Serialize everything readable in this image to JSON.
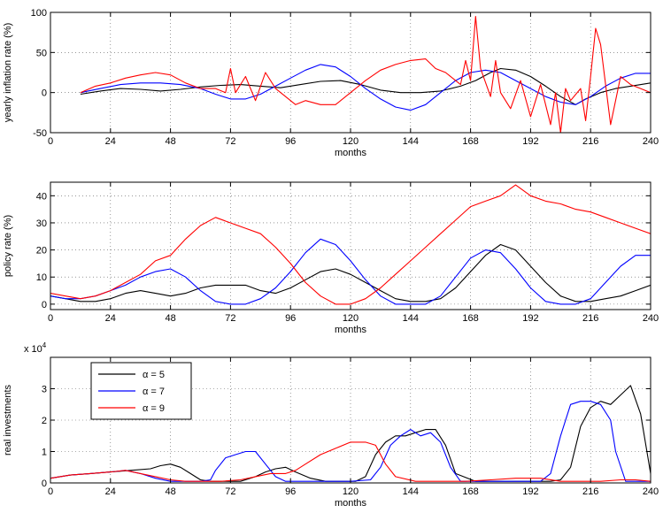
{
  "chart_data": [
    {
      "type": "line",
      "title": "",
      "xlabel": "months",
      "ylabel": "yearly inflation rate (%)",
      "xlim": [
        0,
        240
      ],
      "ylim": [
        -50,
        100
      ],
      "xticks": [
        0,
        24,
        48,
        72,
        96,
        120,
        144,
        168,
        192,
        216,
        240
      ],
      "yticks": [
        -50,
        0,
        50,
        100
      ],
      "grid": true,
      "series": [
        {
          "color": "#000000",
          "x": [
            12,
            20,
            28,
            36,
            44,
            52,
            60,
            68,
            76,
            84,
            92,
            100,
            108,
            116,
            124,
            132,
            140,
            148,
            156,
            164,
            170,
            176,
            180,
            186,
            192,
            198,
            204,
            210,
            214,
            220,
            226,
            232,
            240
          ],
          "y": [
            -2,
            2,
            5,
            4,
            2,
            4,
            7,
            9,
            10,
            8,
            6,
            10,
            14,
            15,
            10,
            3,
            0,
            0,
            2,
            8,
            15,
            25,
            30,
            28,
            20,
            8,
            -5,
            -15,
            -8,
            0,
            5,
            8,
            12
          ]
        },
        {
          "color": "#0000ff",
          "x": [
            12,
            20,
            28,
            36,
            44,
            52,
            60,
            66,
            72,
            78,
            84,
            90,
            96,
            102,
            108,
            114,
            120,
            126,
            132,
            138,
            144,
            150,
            156,
            162,
            168,
            174,
            180,
            186,
            192,
            198,
            204,
            210,
            216,
            222,
            228,
            234,
            240
          ],
          "y": [
            0,
            5,
            10,
            12,
            12,
            10,
            5,
            -2,
            -8,
            -8,
            -2,
            8,
            18,
            28,
            35,
            32,
            20,
            5,
            -8,
            -18,
            -22,
            -15,
            0,
            15,
            25,
            28,
            25,
            15,
            5,
            -5,
            -12,
            -15,
            -5,
            8,
            18,
            24,
            24
          ]
        },
        {
          "color": "#ff0000",
          "x": [
            12,
            18,
            24,
            30,
            36,
            42,
            48,
            54,
            60,
            66,
            70,
            72,
            74,
            78,
            82,
            86,
            90,
            94,
            98,
            102,
            108,
            114,
            120,
            126,
            132,
            138,
            144,
            150,
            154,
            158,
            162,
            164,
            166,
            168,
            170,
            172,
            176,
            178,
            180,
            184,
            188,
            192,
            196,
            200,
            202,
            204,
            206,
            208,
            212,
            214,
            216,
            218,
            220,
            224,
            228,
            232,
            236,
            240
          ],
          "y": [
            0,
            8,
            12,
            18,
            22,
            25,
            22,
            12,
            5,
            5,
            0,
            30,
            0,
            20,
            -10,
            25,
            5,
            -5,
            -15,
            -10,
            -15,
            -15,
            0,
            15,
            28,
            35,
            40,
            42,
            30,
            25,
            15,
            10,
            40,
            15,
            95,
            30,
            -5,
            40,
            0,
            -20,
            15,
            -30,
            10,
            -40,
            0,
            -50,
            5,
            -10,
            5,
            -35,
            20,
            80,
            60,
            -40,
            20,
            10,
            5,
            0
          ]
        }
      ]
    },
    {
      "type": "line",
      "title": "",
      "xlabel": "months",
      "ylabel": "policy rate (%)",
      "xlim": [
        0,
        240
      ],
      "ylim": [
        -2,
        45
      ],
      "xticks": [
        0,
        24,
        48,
        72,
        96,
        120,
        144,
        168,
        192,
        216,
        240
      ],
      "yticks": [
        0,
        10,
        20,
        30,
        40
      ],
      "grid": true,
      "series": [
        {
          "color": "#000000",
          "x": [
            0,
            6,
            12,
            18,
            24,
            30,
            36,
            42,
            48,
            54,
            60,
            66,
            72,
            78,
            84,
            90,
            96,
            102,
            108,
            114,
            120,
            126,
            132,
            138,
            144,
            150,
            156,
            162,
            168,
            174,
            180,
            186,
            192,
            198,
            204,
            210,
            216,
            222,
            228,
            234,
            240
          ],
          "y": [
            3,
            2,
            1,
            1,
            2,
            4,
            5,
            4,
            3,
            4,
            6,
            7,
            7,
            7,
            5,
            4,
            6,
            9,
            12,
            13,
            11,
            8,
            5,
            2,
            1,
            1,
            2,
            6,
            12,
            18,
            22,
            20,
            14,
            8,
            3,
            1,
            1,
            2,
            3,
            5,
            7
          ]
        },
        {
          "color": "#0000ff",
          "x": [
            0,
            6,
            12,
            18,
            24,
            30,
            36,
            42,
            48,
            54,
            60,
            66,
            72,
            78,
            84,
            90,
            96,
            102,
            108,
            114,
            120,
            126,
            132,
            138,
            144,
            150,
            156,
            162,
            168,
            174,
            180,
            186,
            192,
            198,
            204,
            210,
            216,
            222,
            228,
            234,
            240
          ],
          "y": [
            3,
            2,
            2,
            3,
            5,
            7,
            10,
            12,
            13,
            10,
            5,
            1,
            0,
            0,
            2,
            6,
            12,
            19,
            24,
            22,
            16,
            9,
            3,
            0,
            0,
            0,
            3,
            10,
            17,
            20,
            19,
            13,
            6,
            1,
            0,
            0,
            2,
            8,
            14,
            18,
            18
          ]
        },
        {
          "color": "#ff0000",
          "x": [
            0,
            6,
            12,
            18,
            24,
            30,
            36,
            42,
            48,
            54,
            60,
            66,
            72,
            78,
            84,
            90,
            96,
            102,
            108,
            114,
            120,
            126,
            132,
            138,
            144,
            150,
            156,
            162,
            168,
            174,
            180,
            186,
            192,
            198,
            204,
            210,
            216,
            222,
            228,
            234,
            240
          ],
          "y": [
            4,
            3,
            2,
            3,
            5,
            8,
            11,
            16,
            18,
            24,
            29,
            32,
            30,
            28,
            26,
            21,
            15,
            8,
            3,
            0,
            0,
            2,
            6,
            11,
            16,
            21,
            26,
            31,
            36,
            38,
            40,
            44,
            40,
            38,
            37,
            35,
            34,
            32,
            30,
            28,
            26
          ]
        }
      ]
    },
    {
      "type": "line",
      "title": "",
      "xlabel": "months",
      "ylabel": "real investments",
      "ylabel_multiplier": "x 10",
      "ylabel_exponent": "4",
      "xlim": [
        0,
        240
      ],
      "ylim": [
        0,
        4
      ],
      "xticks": [
        0,
        24,
        48,
        72,
        96,
        120,
        144,
        168,
        192,
        216,
        240
      ],
      "yticks": [
        0,
        1,
        2,
        3
      ],
      "grid": true,
      "legend": {
        "placement": "top-left",
        "entries": [
          {
            "label": "α = 5",
            "color": "#000000"
          },
          {
            "label": "α = 7",
            "color": "#0000ff"
          },
          {
            "label": "α = 9",
            "color": "#ff0000"
          }
        ]
      },
      "series": [
        {
          "color": "#000000",
          "x": [
            0,
            8,
            16,
            24,
            32,
            40,
            44,
            48,
            52,
            56,
            60,
            64,
            70,
            76,
            82,
            86,
            90,
            94,
            98,
            104,
            110,
            116,
            122,
            126,
            130,
            134,
            138,
            142,
            146,
            150,
            154,
            158,
            162,
            170,
            180,
            190,
            196,
            200,
            204,
            208,
            212,
            216,
            220,
            224,
            228,
            232,
            236,
            240
          ],
          "y": [
            0.15,
            0.25,
            0.3,
            0.35,
            0.4,
            0.45,
            0.55,
            0.6,
            0.5,
            0.3,
            0.1,
            0.05,
            0.05,
            0.05,
            0.2,
            0.35,
            0.45,
            0.5,
            0.35,
            0.15,
            0.05,
            0.05,
            0.05,
            0.2,
            0.9,
            1.3,
            1.5,
            1.5,
            1.6,
            1.7,
            1.7,
            1.2,
            0.3,
            0.05,
            0.05,
            0.05,
            0.05,
            0.05,
            0.1,
            0.5,
            1.8,
            2.4,
            2.6,
            2.5,
            2.8,
            3.1,
            2.2,
            0.3
          ]
        },
        {
          "color": "#0000ff",
          "x": [
            0,
            8,
            16,
            24,
            30,
            36,
            42,
            48,
            54,
            60,
            64,
            66,
            70,
            74,
            78,
            82,
            86,
            90,
            94,
            98,
            102,
            110,
            120,
            128,
            132,
            136,
            140,
            144,
            148,
            152,
            156,
            160,
            164,
            170,
            180,
            190,
            196,
            200,
            204,
            208,
            212,
            216,
            220,
            224,
            226,
            230,
            240
          ],
          "y": [
            0.15,
            0.25,
            0.3,
            0.35,
            0.4,
            0.3,
            0.15,
            0.05,
            0.05,
            0.05,
            0.1,
            0.4,
            0.8,
            0.9,
            1.0,
            1.0,
            0.6,
            0.2,
            0.05,
            0.05,
            0.05,
            0.05,
            0.05,
            0.1,
            0.5,
            1.2,
            1.5,
            1.7,
            1.5,
            1.6,
            1.3,
            0.5,
            0.05,
            0.05,
            0.05,
            0.05,
            0.05,
            0.3,
            1.5,
            2.5,
            2.6,
            2.6,
            2.5,
            2.0,
            1.0,
            0.05,
            0.05
          ]
        },
        {
          "color": "#ff0000",
          "x": [
            0,
            8,
            16,
            24,
            30,
            36,
            42,
            48,
            54,
            60,
            68,
            76,
            82,
            88,
            94,
            98,
            102,
            108,
            114,
            120,
            126,
            130,
            134,
            138,
            146,
            156,
            166,
            176,
            186,
            196,
            204,
            212,
            220,
            228,
            234,
            240
          ],
          "y": [
            0.15,
            0.25,
            0.3,
            0.35,
            0.4,
            0.3,
            0.2,
            0.1,
            0.05,
            0.05,
            0.05,
            0.1,
            0.2,
            0.3,
            0.3,
            0.4,
            0.6,
            0.9,
            1.1,
            1.3,
            1.3,
            1.2,
            0.6,
            0.2,
            0.05,
            0.05,
            0.05,
            0.1,
            0.15,
            0.15,
            0.05,
            0.05,
            0.05,
            0.1,
            0.1,
            0.05
          ]
        }
      ]
    }
  ]
}
